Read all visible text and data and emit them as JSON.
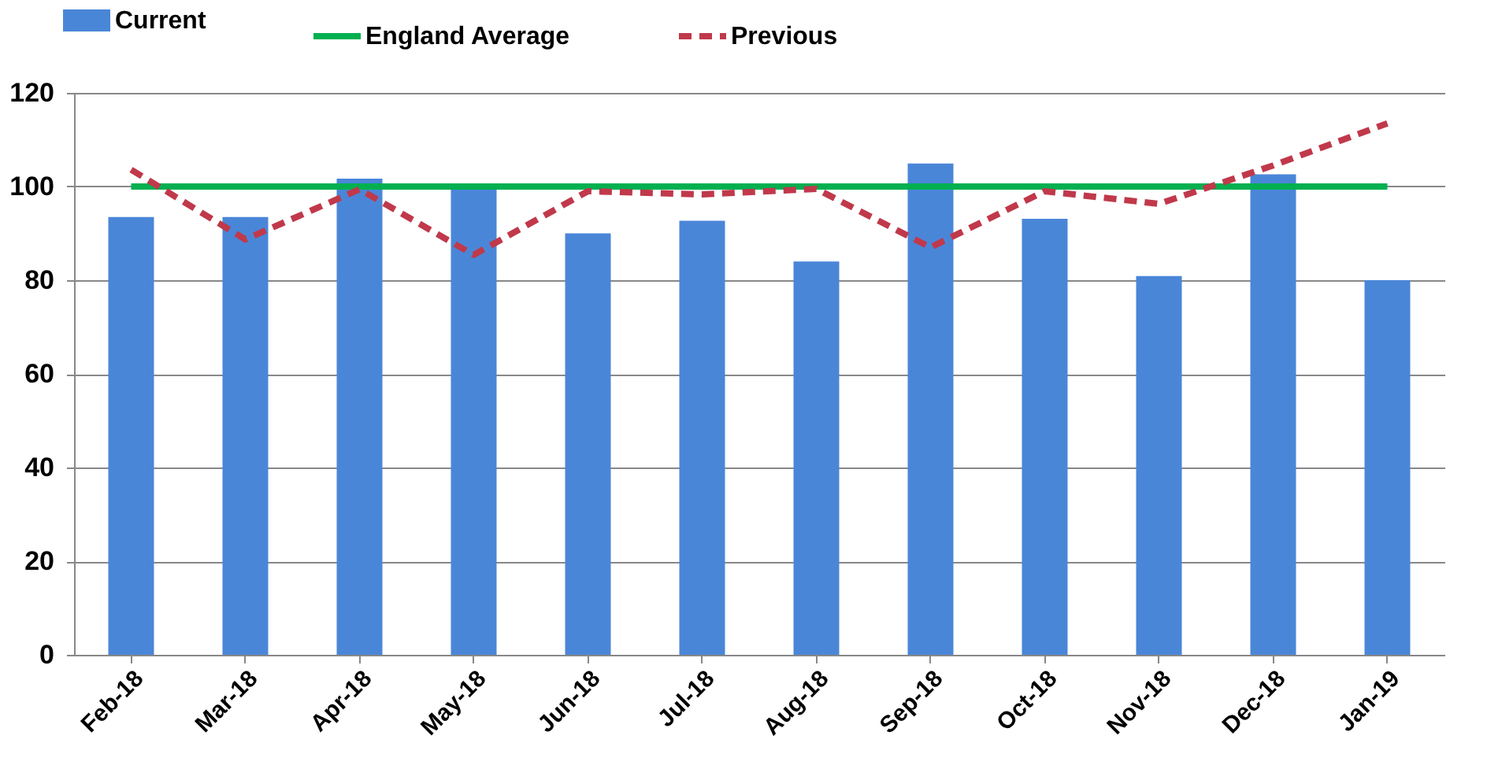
{
  "chart_data": {
    "type": "bar",
    "categories": [
      "Feb-18",
      "Mar-18",
      "Apr-18",
      "May-18",
      "Jun-18",
      "Jul-18",
      "Aug-18",
      "Sep-18",
      "Oct-18",
      "Nov-18",
      "Dec-18",
      "Jan-19"
    ],
    "series": [
      {
        "name": "Current",
        "color": "#4a86d8",
        "values": [
          93.5,
          93.5,
          101.7,
          100,
          90,
          92.7,
          84,
          104.9,
          93.1,
          80.9,
          102.6,
          80
        ]
      },
      {
        "name": "England Average",
        "type": "line",
        "color": "#00b050",
        "line_style": "solid",
        "values": [
          100,
          100,
          100,
          100,
          100,
          100,
          100,
          100,
          100,
          100,
          100,
          100
        ]
      },
      {
        "name": "Previous",
        "type": "line",
        "color": "#c0394b",
        "line_style": "dashed",
        "values": [
          103.6,
          88.7,
          99.4,
          85.4,
          99,
          98.3,
          99.5,
          87,
          99,
          96.3,
          104.5,
          113.5
        ]
      }
    ],
    "ylim": [
      0,
      120
    ],
    "yticks": [
      0,
      20,
      40,
      60,
      80,
      100,
      120
    ],
    "grid": "y",
    "legend": "top"
  }
}
